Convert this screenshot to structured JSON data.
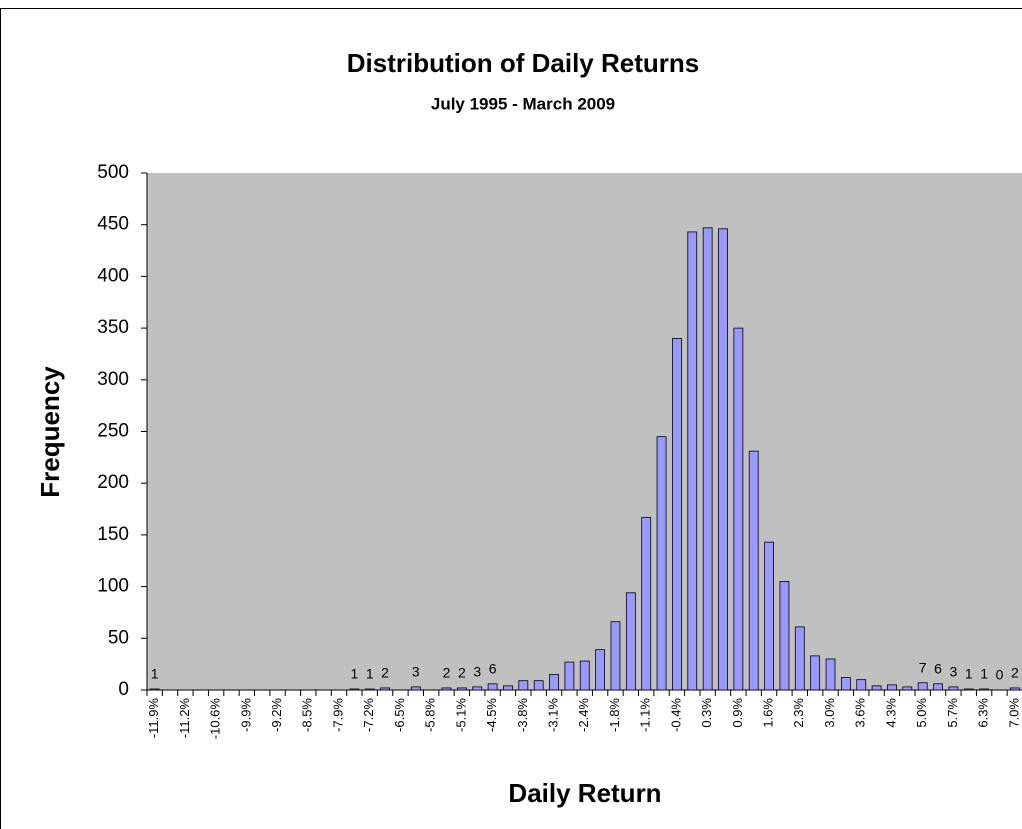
{
  "chart_data": {
    "type": "bar",
    "title": "Distribution of Daily Returns",
    "subtitle": "July 1995 - March 2009",
    "xlabel": "Daily Return",
    "ylabel": "Frequency",
    "categories": [
      "-11.9%",
      null,
      "-11.2%",
      null,
      "-10.6%",
      null,
      "-9.9%",
      null,
      "-9.2%",
      null,
      "-8.5%",
      null,
      "-7.9%",
      null,
      "-7.2%",
      null,
      "-6.5%",
      null,
      "-5.8%",
      null,
      "-5.1%",
      null,
      "-4.5%",
      null,
      "-3.8%",
      null,
      "-3.1%",
      null,
      "-2.4%",
      null,
      "-1.8%",
      null,
      "-1.1%",
      null,
      "-0.4%",
      null,
      "0.3%",
      null,
      "0.9%",
      null,
      "1.6%",
      null,
      "2.3%",
      null,
      "3.0%",
      null,
      "3.6%",
      null,
      "4.3%",
      null,
      "5.0%",
      null,
      "5.7%",
      null,
      "6.3%",
      null,
      "7.0%"
    ],
    "values": [
      1,
      0,
      0,
      0,
      0,
      0,
      0,
      0,
      0,
      0,
      0,
      0,
      0,
      1,
      1,
      2,
      0,
      3,
      0,
      2,
      2,
      3,
      6,
      4,
      9,
      9,
      15,
      27,
      28,
      39,
      66,
      94,
      167,
      245,
      340,
      443,
      447,
      446,
      350,
      231,
      143,
      105,
      61,
      33,
      30,
      12,
      10,
      4,
      5,
      3,
      7,
      6,
      3,
      1,
      1,
      0,
      2
    ],
    "value_labels": [
      "1",
      null,
      null,
      null,
      null,
      null,
      null,
      null,
      null,
      null,
      null,
      null,
      null,
      "1",
      "1",
      "2",
      null,
      "3",
      null,
      "2",
      "2",
      "3",
      "6",
      null,
      null,
      null,
      null,
      null,
      null,
      null,
      null,
      null,
      null,
      null,
      null,
      null,
      null,
      null,
      null,
      null,
      null,
      null,
      null,
      null,
      null,
      null,
      null,
      null,
      null,
      null,
      "7",
      "6",
      "3",
      "1",
      "1",
      "0",
      "2"
    ],
    "color": "#9999ff",
    "ylim": [
      0,
      500
    ],
    "yticks": [
      0,
      50,
      100,
      150,
      200,
      250,
      300,
      350,
      400,
      450,
      500
    ],
    "grid": false
  }
}
